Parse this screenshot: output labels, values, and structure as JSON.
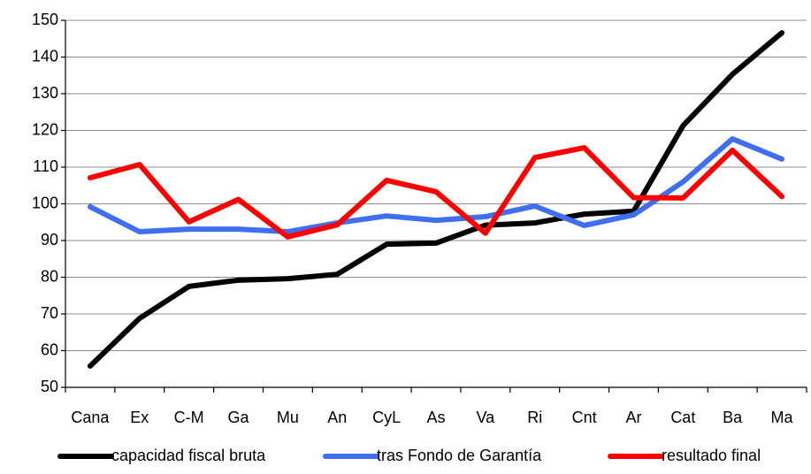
{
  "chart_data": {
    "type": "line",
    "categories": [
      "Cana",
      "Ex",
      "C-M",
      "Ga",
      "Mu",
      "An",
      "CyL",
      "As",
      "Va",
      "Ri",
      "Cnt",
      "Ar",
      "Cat",
      "Ba",
      "Ma"
    ],
    "series": [
      {
        "name": "capacidad fiscal bruta",
        "color": "#000000",
        "values": [
          55.8,
          68.8,
          77.5,
          79.2,
          79.6,
          80.8,
          89,
          89.3,
          94.2,
          94.8,
          97.2,
          98,
          121.3,
          135.3,
          146.6
        ]
      },
      {
        "name": "tras Fondo de Garantía",
        "color": "#3f6ff0",
        "values": [
          99.2,
          92.4,
          93.1,
          93.1,
          92.4,
          94.8,
          96.7,
          95.5,
          96.5,
          99.4,
          94.1,
          97,
          106,
          117.7,
          112.2
        ]
      },
      {
        "name": "resultado final",
        "color": "#ff0000",
        "values": [
          107.1,
          110.7,
          95.1,
          101.2,
          91,
          94.3,
          106.4,
          103.3,
          92,
          112.6,
          115.3,
          101.7,
          101.6,
          114.6,
          102
        ]
      }
    ],
    "ylim": [
      50,
      150
    ],
    "yticks": [
      50,
      60,
      70,
      80,
      90,
      100,
      110,
      120,
      130,
      140,
      150
    ],
    "grid": true,
    "legend": "bottom"
  }
}
